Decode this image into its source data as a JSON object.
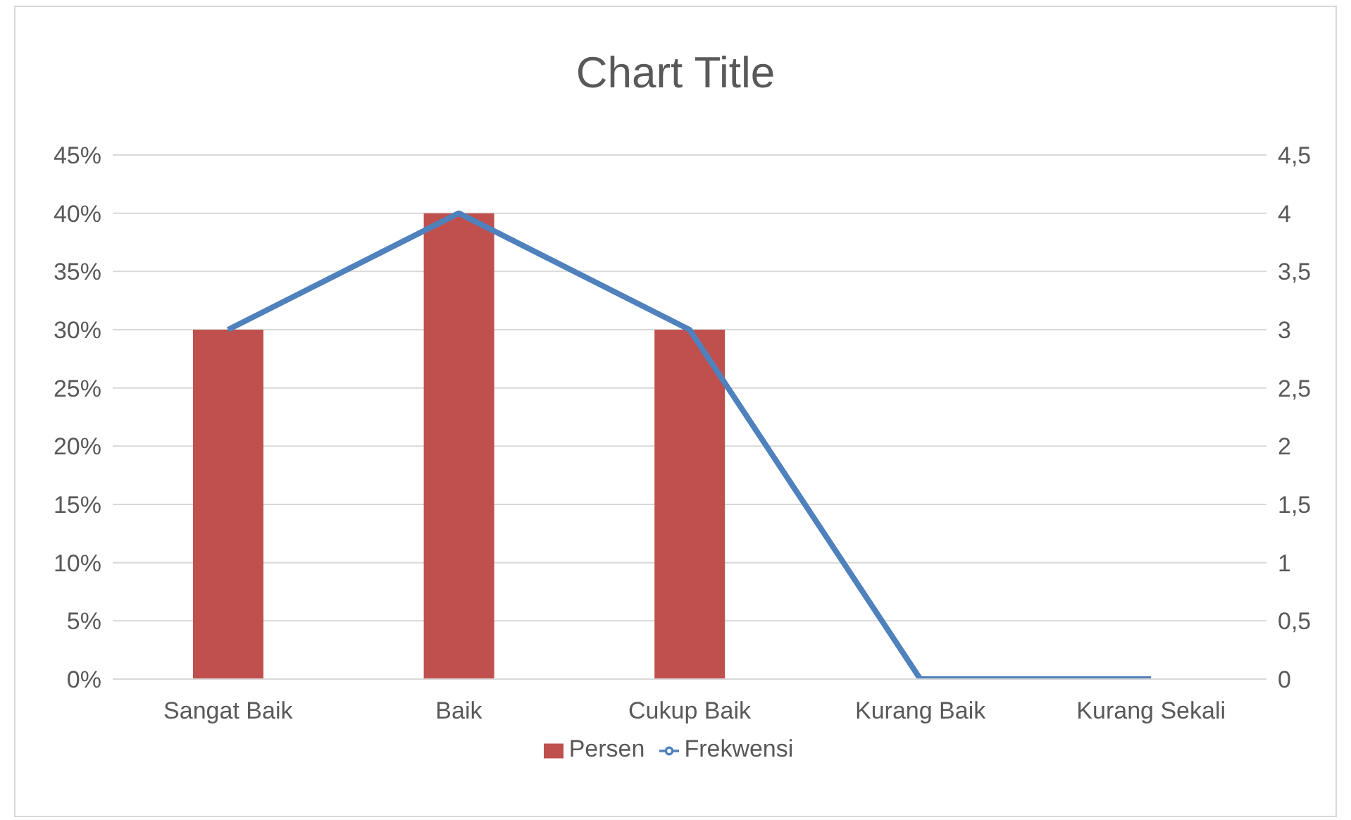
{
  "chart_data": {
    "type": "bar",
    "title": "Chart Title",
    "categories": [
      "Sangat Baik",
      "Baik",
      "Cukup Baik",
      "Kurang Baik",
      "Kurang Sekali"
    ],
    "series": [
      {
        "name": "Persen",
        "color": "#c0504d",
        "values": [
          30,
          40,
          30,
          0,
          0
        ]
      },
      {
        "name": "Frekwensi",
        "type": "line",
        "axis": "y2",
        "color": "#4f81bd",
        "values": [
          3,
          4,
          3,
          0,
          0
        ]
      }
    ],
    "ylim": [
      0,
      45
    ],
    "yticks": [
      {
        "value": 0,
        "label": "0%"
      },
      {
        "value": 5,
        "label": "5%"
      },
      {
        "value": 10,
        "label": "10%"
      },
      {
        "value": 15,
        "label": "15%"
      },
      {
        "value": 20,
        "label": "20%"
      },
      {
        "value": 25,
        "label": "25%"
      },
      {
        "value": 30,
        "label": "30%"
      },
      {
        "value": 35,
        "label": "35%"
      },
      {
        "value": 40,
        "label": "40%"
      },
      {
        "value": 45,
        "label": "45%"
      }
    ],
    "y2lim": [
      0,
      4.5
    ],
    "y2ticks": [
      0,
      {
        "value": 0.5,
        "label": "0,5"
      },
      1,
      {
        "value": 1.5,
        "label": "1,5"
      },
      2,
      {
        "value": 2.5,
        "label": "2,5"
      },
      3,
      {
        "value": 3.5,
        "label": "3,5"
      },
      4,
      {
        "value": 4.5,
        "label": "4,5"
      }
    ],
    "grid": "y",
    "legend": "bottom",
    "marker": "none",
    "line_style": "solid"
  }
}
